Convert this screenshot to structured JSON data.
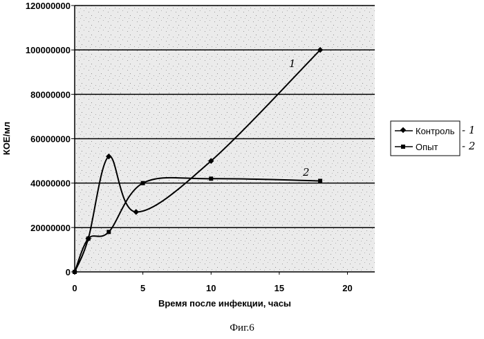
{
  "chart_data": {
    "type": "line",
    "title": "",
    "xlabel": "Время после инфекции, часы",
    "ylabel": "КОЕ/мл",
    "xlim": [
      0,
      22
    ],
    "ylim": [
      0,
      120000000
    ],
    "x_ticks": [
      "0",
      "5",
      "10",
      "15",
      "20"
    ],
    "y_ticks": [
      "0",
      "20000000",
      "40000000",
      "60000000",
      "80000000",
      "100000000",
      "120000000"
    ],
    "grid": "horizontal",
    "legend_position": "right",
    "series": [
      {
        "name": "Контроль",
        "marker": "diamond",
        "handwritten_label": "1",
        "x": [
          0,
          1,
          2.5,
          4.5,
          10,
          18
        ],
        "y": [
          0,
          15000000,
          52000000,
          27000000,
          50000000,
          100000000
        ]
      },
      {
        "name": "Опыт",
        "marker": "square",
        "handwritten_label": "2",
        "x": [
          0,
          1,
          2.5,
          5,
          10,
          18
        ],
        "y": [
          0,
          15000000,
          18000000,
          40000000,
          42000000,
          41000000
        ]
      }
    ],
    "caption": "Фиг.6",
    "colors": {
      "line": "#000000",
      "plot_background": "#ebebeb"
    }
  },
  "legend": {
    "entries": [
      {
        "label": "Контроль",
        "handwritten": "- 1"
      },
      {
        "label": "Опыт",
        "handwritten": "- 2"
      }
    ]
  },
  "annotations": {
    "curve1_mark": "1",
    "curve2_mark": "2"
  }
}
